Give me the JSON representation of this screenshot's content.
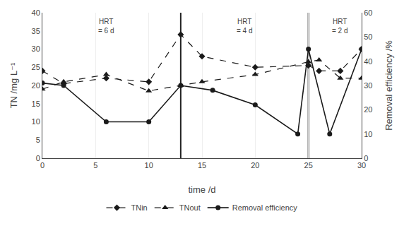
{
  "chart_data": {
    "type": "line",
    "xlabel": "time /d",
    "ylabel": "TN /mg L⁻¹",
    "y2label": "Removal efficiency /%",
    "xlim": [
      0,
      30
    ],
    "xticks": [
      0,
      5,
      10,
      15,
      20,
      25,
      30
    ],
    "ylim": [
      0,
      40
    ],
    "yticks": [
      0,
      5,
      10,
      15,
      20,
      25,
      30,
      35,
      40
    ],
    "y2lim": [
      0,
      60
    ],
    "y2ticks": [
      0,
      10,
      20,
      30,
      40,
      50,
      60
    ],
    "grid": "x",
    "legend": "bottom",
    "series": [
      {
        "name": "TNin",
        "color": "#1a1a1a",
        "marker": "diamond",
        "line_style": "dash",
        "x": [
          0,
          2,
          6,
          10,
          13,
          15,
          20,
          25,
          26,
          28,
          30
        ],
        "values": [
          24,
          20.5,
          22,
          21,
          34,
          28,
          25,
          25.5,
          24,
          24,
          30
        ]
      },
      {
        "name": "TNout",
        "color": "#1a1a1a",
        "marker": "triangle-up",
        "line_style": "dash",
        "x": [
          0,
          2,
          6,
          10,
          13,
          15,
          20,
          25,
          26,
          28,
          30
        ],
        "values": [
          19,
          21,
          23,
          18.5,
          20,
          21,
          23,
          26.5,
          27,
          22,
          22
        ]
      },
      {
        "name": "Removal efficiency",
        "color": "#1a1a1a",
        "marker": "circle",
        "line_style": "solid",
        "axis": "y2",
        "x": [
          0,
          2,
          6,
          10,
          13,
          16,
          20,
          24,
          25,
          27,
          30
        ],
        "values": [
          31,
          30,
          15,
          15,
          30,
          28,
          22,
          10,
          45,
          10,
          45
        ]
      }
    ],
    "vlines": [
      13,
      25
    ],
    "annotations": [
      {
        "x": 6,
        "y": 39,
        "text": "HRT\n= 6 d"
      },
      {
        "x": 19,
        "y": 39,
        "text": "HRT\n= 4 d"
      },
      {
        "x": 28,
        "y": 39,
        "text": "HRT\n= 2 d"
      }
    ]
  }
}
